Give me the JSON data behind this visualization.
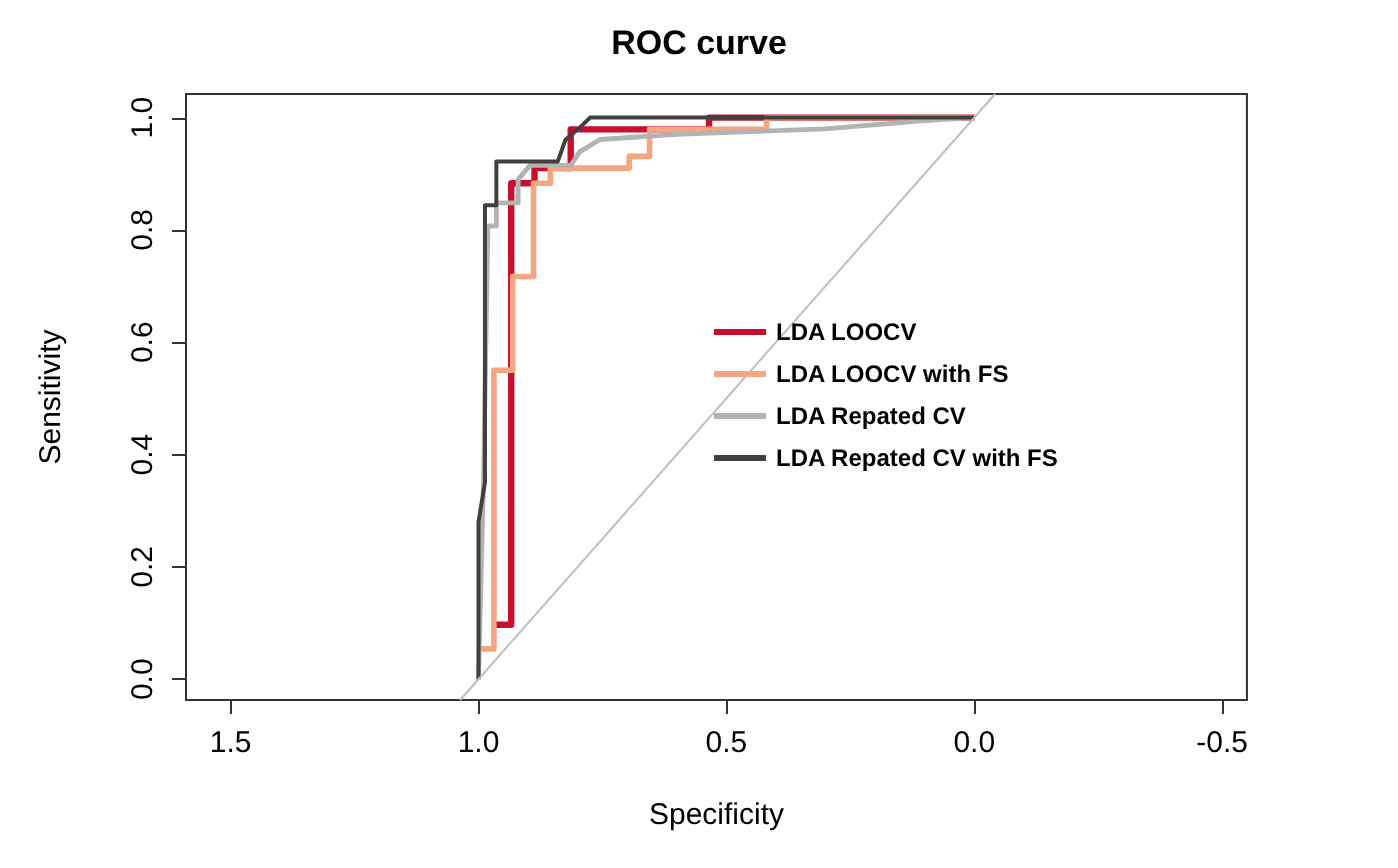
{
  "chart_data": {
    "type": "line",
    "title": "ROC curve",
    "xlabel": "Specificity",
    "ylabel": "Sensitivity",
    "xlim": [
      1.59,
      -0.55
    ],
    "ylim": [
      -0.037,
      1.042
    ],
    "xticks": [
      {
        "value": 1.5,
        "label": "1.5"
      },
      {
        "value": 1,
        "label": "1.0"
      },
      {
        "value": 0.5,
        "label": "0.5"
      },
      {
        "value": 0,
        "label": "0.0"
      },
      {
        "value": -0.5,
        "label": "-0.5"
      }
    ],
    "yticks": [
      {
        "value": 0,
        "label": "0.0"
      },
      {
        "value": 0.2,
        "label": "0.2"
      },
      {
        "value": 0.4,
        "label": "0.4"
      },
      {
        "value": 0.6,
        "label": "0.6"
      },
      {
        "value": 0.8,
        "label": "0.8"
      },
      {
        "value": 1,
        "label": "1.0"
      }
    ],
    "grid": false,
    "legend": "center",
    "marker": "none",
    "line_style": "solid",
    "series": [
      {
        "name": "LDA LOOCV",
        "color": "#c8102e",
        "x": [
          0.967,
          0.934,
          0.934,
          0.887,
          0.887,
          0.814,
          0.814,
          0.535,
          0.535,
          0.0
        ],
        "values": [
          0.097,
          0.097,
          0.883,
          0.883,
          0.91,
          0.91,
          0.979,
          0.979,
          1.0,
          1.0
        ]
      },
      {
        "name": "LDA LOOCV with FS",
        "color": "#f4a582",
        "x": [
          0.999,
          0.969,
          0.969,
          0.931,
          0.931,
          0.889,
          0.889,
          0.855,
          0.855,
          0.696,
          0.696,
          0.655,
          0.655,
          0.419,
          0.419,
          0.0
        ],
        "values": [
          0.054,
          0.054,
          0.55,
          0.55,
          0.717,
          0.717,
          0.883,
          0.883,
          0.91,
          0.91,
          0.931,
          0.931,
          0.979,
          0.979,
          1.0,
          1.0
        ]
      },
      {
        "name": "LDA Repated CV",
        "color": "#b3b3b3",
        "x": [
          1.0,
          0.99,
          0.981,
          0.964,
          0.964,
          0.92,
          0.92,
          0.896,
          0.814,
          0.796,
          0.755,
          0.6,
          0.3,
          0.107,
          0.0
        ],
        "values": [
          0.0,
          0.35,
          0.807,
          0.807,
          0.848,
          0.848,
          0.89,
          0.915,
          0.915,
          0.939,
          0.961,
          0.97,
          0.98,
          0.994,
          1.0
        ]
      },
      {
        "name": "LDA Repated CV with FS",
        "color": "#404040",
        "x": [
          1.0,
          1.0,
          0.987,
          0.987,
          0.964,
          0.964,
          0.84,
          0.825,
          0.79,
          0.775,
          0.0
        ],
        "values": [
          0.0,
          0.28,
          0.35,
          0.844,
          0.844,
          0.922,
          0.922,
          0.96,
          0.987,
          1.0,
          1.0
        ]
      },
      {
        "color": "#bebebe",
        "x": [
          1.037,
          -0.042
        ],
        "values": [
          -0.037,
          1.042
        ]
      }
    ]
  }
}
